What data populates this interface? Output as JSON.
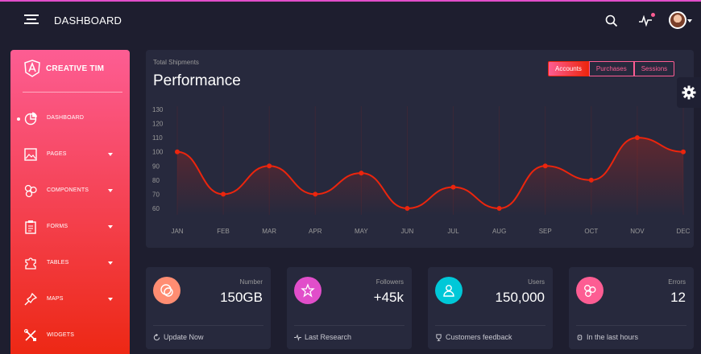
{
  "topbar": {
    "brand": "DASHBOARD",
    "icons": [
      "menu-icon",
      "search-icon",
      "activity-icon",
      "avatar"
    ]
  },
  "sidebar": {
    "logo_text": "CREATIVE TIM",
    "items": [
      {
        "label": "DASHBOARD",
        "icon": "chart-pie-icon",
        "active": true,
        "has_caret": false
      },
      {
        "label": "PAGES",
        "icon": "image-icon",
        "active": false,
        "has_caret": true
      },
      {
        "label": "COMPONENTS",
        "icon": "molecule-icon",
        "active": false,
        "has_caret": true
      },
      {
        "label": "FORMS",
        "icon": "clipboard-icon",
        "active": false,
        "has_caret": true
      },
      {
        "label": "TABLES",
        "icon": "puzzle-icon",
        "active": false,
        "has_caret": true
      },
      {
        "label": "MAPS",
        "icon": "pin-icon",
        "active": false,
        "has_caret": true
      },
      {
        "label": "WIDGETS",
        "icon": "tools-icon",
        "active": false,
        "has_caret": false
      }
    ]
  },
  "chart_card": {
    "subtitle": "Total Shipments",
    "title": "Performance",
    "tabs": [
      "Accounts",
      "Purchases",
      "Sessions"
    ],
    "active_tab": "Accounts"
  },
  "chart_data": {
    "type": "line",
    "categories": [
      "JAN",
      "FEB",
      "MAR",
      "APR",
      "MAY",
      "JUN",
      "JUL",
      "AUG",
      "SEP",
      "OCT",
      "NOV",
      "DEC"
    ],
    "series": [
      {
        "values": [
          100,
          70,
          90,
          70,
          85,
          60,
          75,
          60,
          90,
          80,
          110,
          100
        ]
      }
    ],
    "yticks": [
      60,
      70,
      80,
      90,
      100,
      110,
      120,
      130
    ],
    "ylim": [
      60,
      130
    ],
    "grid": true,
    "color": "#ec250d"
  },
  "stats": [
    {
      "label": "Number",
      "value": "150GB",
      "footer": "Update Now",
      "icon": "chat-icon",
      "footer_icon": "refresh-icon",
      "color": "#ff8d72"
    },
    {
      "label": "Followers",
      "value": "+45k",
      "footer": "Last Research",
      "icon": "star-icon",
      "footer_icon": "pulse-icon",
      "color": "#e14eca"
    },
    {
      "label": "Users",
      "value": "150,000",
      "footer": "Customers feedback",
      "icon": "user-icon",
      "footer_icon": "trophy-icon",
      "color": "#00f2c3"
    },
    {
      "label": "Errors",
      "value": "12",
      "footer": "In the last hours",
      "icon": "molecule-icon",
      "footer_icon": "watch-icon",
      "color": "#fd5d93"
    }
  ]
}
